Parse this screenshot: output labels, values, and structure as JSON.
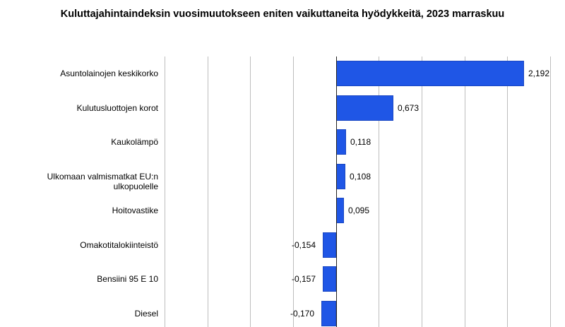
{
  "chart_data": {
    "type": "bar",
    "orientation": "horizontal",
    "title": "Kuluttajahintaindeksin vuosimuutokseen eniten vaikuttaneita hyödykkeitä, 2023 marraskuu",
    "xlabel": "",
    "ylabel": "",
    "xlim": [
      -2.0,
      2.5
    ],
    "grid": true,
    "gridline_step": 0.5,
    "categories": [
      "Asuntolainojen keskikorko",
      "Kulutusluottojen korot",
      "Kaukolämpö",
      "Ulkomaan valmismatkat EU:n ulkopuolelle",
      "Hoitovastike",
      "Omakotitalokiinteistö",
      "Bensiini 95 E 10",
      "Diesel"
    ],
    "values": [
      2.192,
      0.673,
      0.118,
      0.108,
      0.095,
      -0.154,
      -0.157,
      -0.17
    ],
    "value_labels": [
      "2,192",
      "0,673",
      "0,118",
      "0,108",
      "0,095",
      "-0,154",
      "-0,157",
      "-0,170"
    ],
    "bar_color": "#1f56e6",
    "legend": null
  }
}
